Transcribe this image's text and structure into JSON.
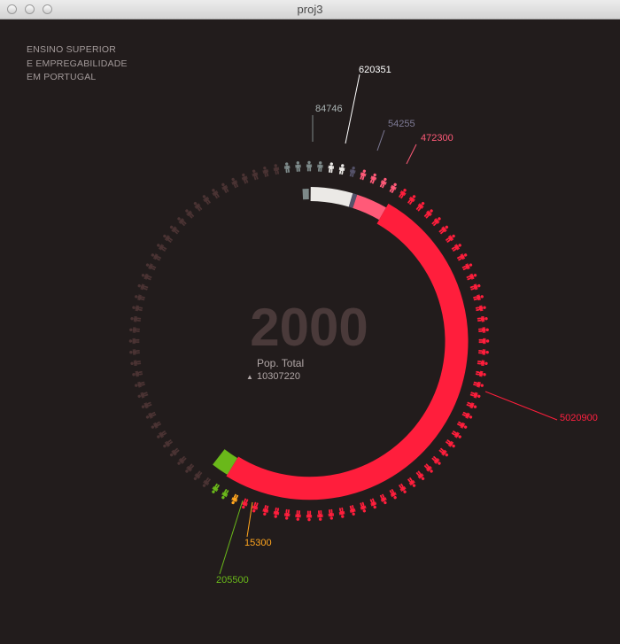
{
  "window": {
    "title": "proj3"
  },
  "heading": {
    "lines": [
      "ENSINO SUPERIOR",
      "E EMPREGABILIDADE",
      "EM PORTUGAL"
    ]
  },
  "center": {
    "year": "2000",
    "pop_label": "Pop. Total",
    "pop_arrow": "▲",
    "pop_value": "10307220"
  },
  "callouts": [
    {
      "value": "84746",
      "color": "#aab3b3"
    },
    {
      "value": "620351",
      "color": "#ffffff"
    },
    {
      "value": "54255",
      "color": "#7d7a95"
    },
    {
      "value": "472300",
      "color": "#ff5a78"
    },
    {
      "value": "5020900",
      "color": "#ff2040"
    },
    {
      "value": "15300",
      "color": "#ffa51e"
    },
    {
      "value": "205500",
      "color": "#6ab81a"
    }
  ],
  "colors": {
    "background": "#221c1c",
    "figure_inactive": "#4a3333",
    "grey": "#7d8989",
    "white": "#ebe9e6",
    "purple": "#55526a",
    "pink": "#ff5a78",
    "red": "#ff1e3c",
    "orange": "#ffa51e",
    "green": "#6ab81a",
    "year": "#4a3a3a"
  },
  "icons": {
    "window_buttons": [
      "close-icon",
      "minimize-icon",
      "zoom-icon"
    ],
    "figure": "person-icon"
  }
}
